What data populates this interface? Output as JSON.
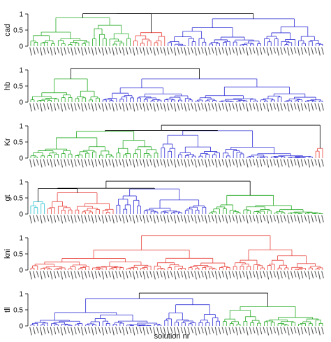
{
  "figure": {
    "xlabel": "solution nr"
  },
  "style": {
    "axis_color": "#000000",
    "leaf_label_color": "#555555",
    "colors": {
      "black": "#000000",
      "green": "#22aa22",
      "red": "#e8403a",
      "blue": "#2b2bd6",
      "cyan": "#22bfcf"
    }
  },
  "chart_data": [
    {
      "type": "dendrogram",
      "ylabel": "cad",
      "ylim": [
        0,
        1.2
      ],
      "yticks": [
        0,
        0.5,
        1
      ],
      "root_height": 1.0,
      "top_split_height": 1.0,
      "clusters": [
        {
          "color": "green",
          "leaves": 30,
          "height": 0.88
        },
        {
          "color": "red",
          "leaves": 10,
          "height": 0.42
        },
        {
          "color": "blue",
          "leaves": 46,
          "height": 0.85
        }
      ]
    },
    {
      "type": "dendrogram",
      "ylabel": "hb",
      "ylim": [
        0,
        1.2
      ],
      "yticks": [
        0,
        0.5,
        1
      ],
      "root_height": 1.05,
      "top_split_height": 1.05,
      "clusters": [
        {
          "color": "green",
          "leaves": 21,
          "height": 0.72
        },
        {
          "color": "blue",
          "leaves": 65,
          "height": 0.72
        }
      ]
    },
    {
      "type": "dendrogram",
      "ylabel": "Kr",
      "ylim": [
        0,
        1.2
      ],
      "yticks": [
        0,
        0.5,
        1
      ],
      "root_height": 1.02,
      "top_split_height": 0.85,
      "clusters": [
        {
          "color": "green",
          "leaves": 38,
          "height": 0.83
        },
        {
          "color": "blue",
          "leaves": 45,
          "height": 0.85
        },
        {
          "color": "red",
          "leaves": 3,
          "height": 0.3
        }
      ]
    },
    {
      "type": "dendrogram",
      "ylabel": "gt",
      "ylim": [
        0,
        1.2
      ],
      "yticks": [
        0,
        0.5,
        1
      ],
      "root_height": 1.02,
      "top_split_height": 0.78,
      "clusters": [
        {
          "color": "cyan",
          "leaves": 5,
          "height": 0.38
        },
        {
          "color": "red",
          "leaves": 20,
          "height": 0.66
        },
        {
          "color": "blue",
          "leaves": 27,
          "height": 0.78
        },
        {
          "color": "green",
          "leaves": 34,
          "height": 0.58
        }
      ]
    },
    {
      "type": "dendrogram",
      "ylabel": "kni",
      "ylim": [
        0,
        1.2
      ],
      "yticks": [
        0,
        0.5,
        1
      ],
      "root_height": 1.07,
      "top_split_height": 1.07,
      "clusters": [
        {
          "color": "red",
          "leaves": 86,
          "height": 1.07
        }
      ]
    },
    {
      "type": "dendrogram",
      "ylabel": "tll",
      "ylim": [
        0,
        1.2
      ],
      "yticks": [
        0,
        0.5,
        1
      ],
      "root_height": 1.02,
      "top_split_height": 0.85,
      "clusters": [
        {
          "color": "blue",
          "leaves": 56,
          "height": 0.85
        },
        {
          "color": "green",
          "leaves": 30,
          "height": 0.6
        }
      ]
    }
  ]
}
